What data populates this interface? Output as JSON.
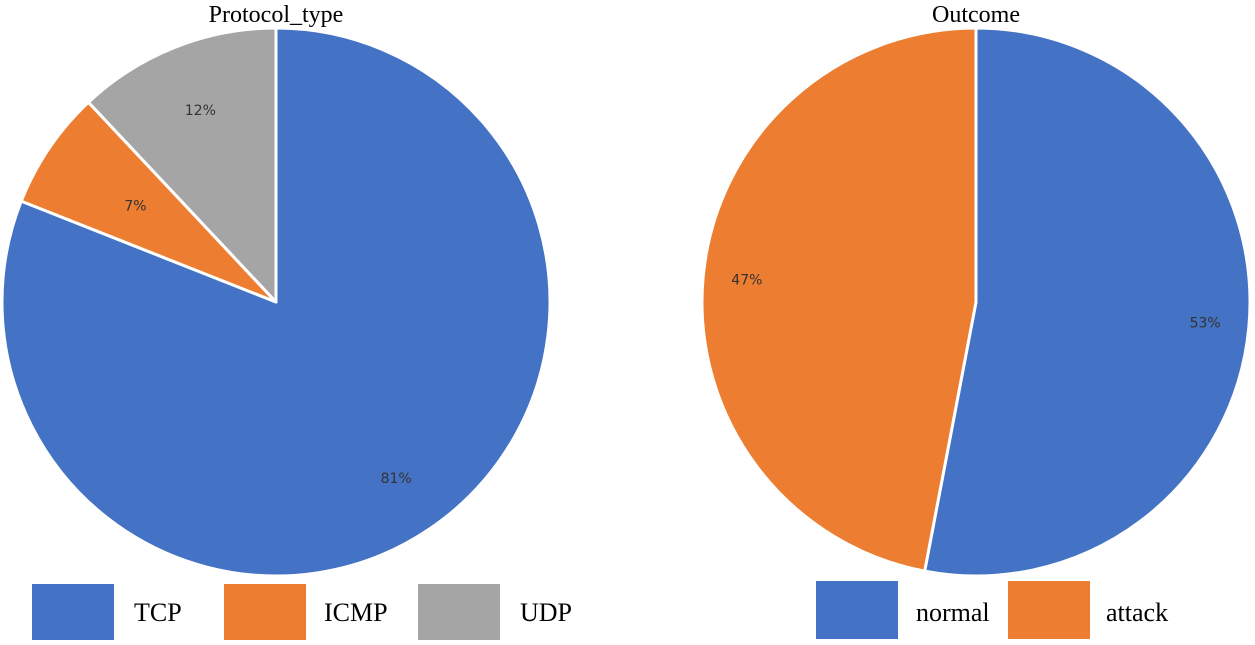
{
  "chart_data": [
    {
      "type": "pie",
      "title": "Protocol_type",
      "categories": [
        "TCP",
        "ICMP",
        "UDP"
      ],
      "values": [
        81,
        7,
        12
      ],
      "labels": [
        "81%",
        "7%",
        "12%"
      ],
      "colors": [
        "#4472C4",
        "#ED7D31",
        "#A5A5A5"
      ],
      "start": "12 o'clock, clockwise",
      "legend": "bottom"
    },
    {
      "type": "pie",
      "title": "Outcome",
      "categories": [
        "normal",
        "attack"
      ],
      "values": [
        53,
        47
      ],
      "labels": [
        "53%",
        "47%"
      ],
      "colors": [
        "#4472C4",
        "#ED7D31"
      ],
      "start": "12 o'clock, clockwise",
      "legend": "bottom"
    }
  ]
}
